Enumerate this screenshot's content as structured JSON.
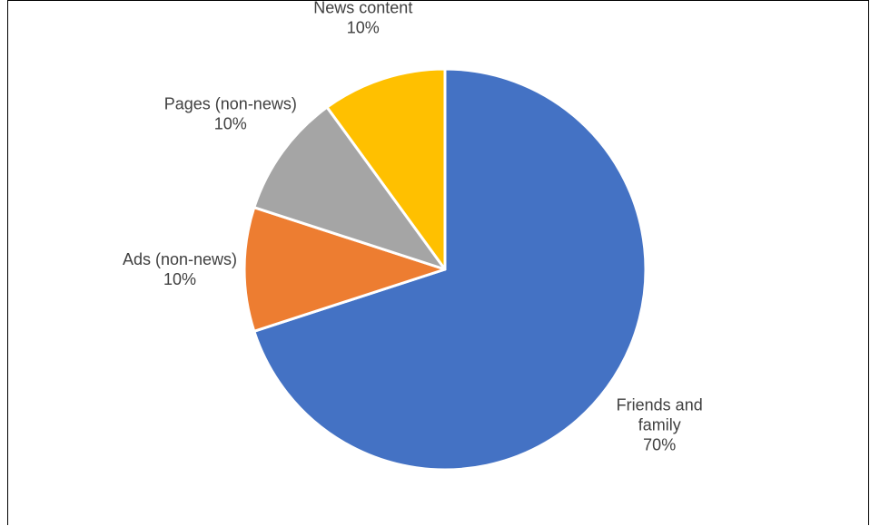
{
  "chart_data": {
    "type": "pie",
    "title": "",
    "slices": [
      {
        "label": [
          "Friends and",
          "family"
        ],
        "value": 70,
        "percent_label": "70%",
        "color": "#4472C4"
      },
      {
        "label": [
          "Ads (non-news)"
        ],
        "value": 10,
        "percent_label": "10%",
        "color": "#ED7D31"
      },
      {
        "label": [
          "Pages (non-news)"
        ],
        "value": 10,
        "percent_label": "10%",
        "color": "#A5A5A5"
      },
      {
        "label": [
          "News content"
        ],
        "value": 10,
        "percent_label": "10%",
        "color": "#FFC000"
      }
    ],
    "start_angle_deg": 0,
    "direction": "clockwise",
    "legend": "none",
    "data_labels": "outside"
  }
}
